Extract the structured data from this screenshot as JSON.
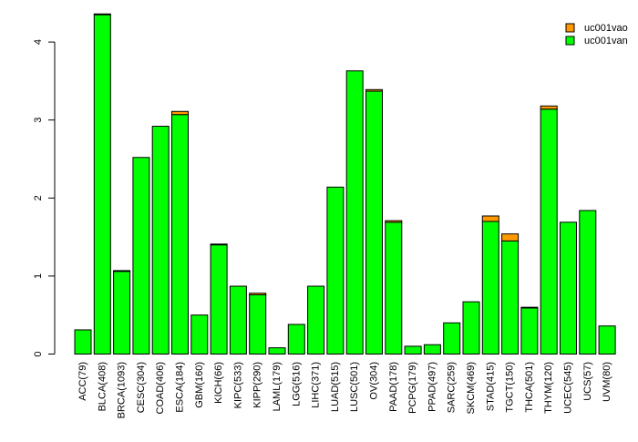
{
  "chart_data": {
    "type": "bar",
    "stacked": true,
    "categories": [
      "ACC(79)",
      "BLCA(408)",
      "BRCA(1093)",
      "CESC(304)",
      "COAD(406)",
      "ESCA(184)",
      "GBM(160)",
      "KICH(66)",
      "KIPC(533)",
      "KIPP(290)",
      "LAML(179)",
      "LGG(516)",
      "LIHC(371)",
      "LUAD(515)",
      "LUSC(501)",
      "OV(304)",
      "PAAD(178)",
      "PCPG(179)",
      "PPAD(497)",
      "SARC(259)",
      "SKCM(469)",
      "STAD(415)",
      "TGCT(150)",
      "THCA(501)",
      "THYM(120)",
      "UCEC(545)",
      "UCS(57)",
      "UVM(80)"
    ],
    "series": [
      {
        "name": "uc001van",
        "color": "#00ff00",
        "values": [
          0.31,
          4.35,
          1.06,
          2.52,
          2.92,
          3.07,
          0.5,
          1.4,
          0.87,
          0.76,
          0.08,
          0.38,
          0.87,
          2.14,
          3.63,
          3.37,
          1.69,
          0.1,
          0.12,
          0.4,
          0.67,
          1.7,
          1.45,
          0.59,
          3.14,
          1.69,
          1.84,
          0.36
        ]
      },
      {
        "name": "uc001vao",
        "color": "#ff9900",
        "values": [
          0.0,
          0.01,
          0.01,
          0.0,
          0.0,
          0.04,
          0.0,
          0.01,
          0.0,
          0.02,
          0.0,
          0.0,
          0.0,
          0.0,
          0.0,
          0.02,
          0.02,
          0.0,
          0.0,
          0.0,
          0.0,
          0.07,
          0.09,
          0.01,
          0.04,
          0.0,
          0.0,
          0.0
        ]
      }
    ],
    "legend_order": [
      "uc001vao",
      "uc001van"
    ],
    "legend_position": "top-right",
    "title": "",
    "xlabel": "",
    "ylabel": "",
    "ylim": [
      0,
      4.4
    ],
    "yticks": [
      "0",
      "1",
      "2",
      "3",
      "4"
    ],
    "grid": false
  }
}
